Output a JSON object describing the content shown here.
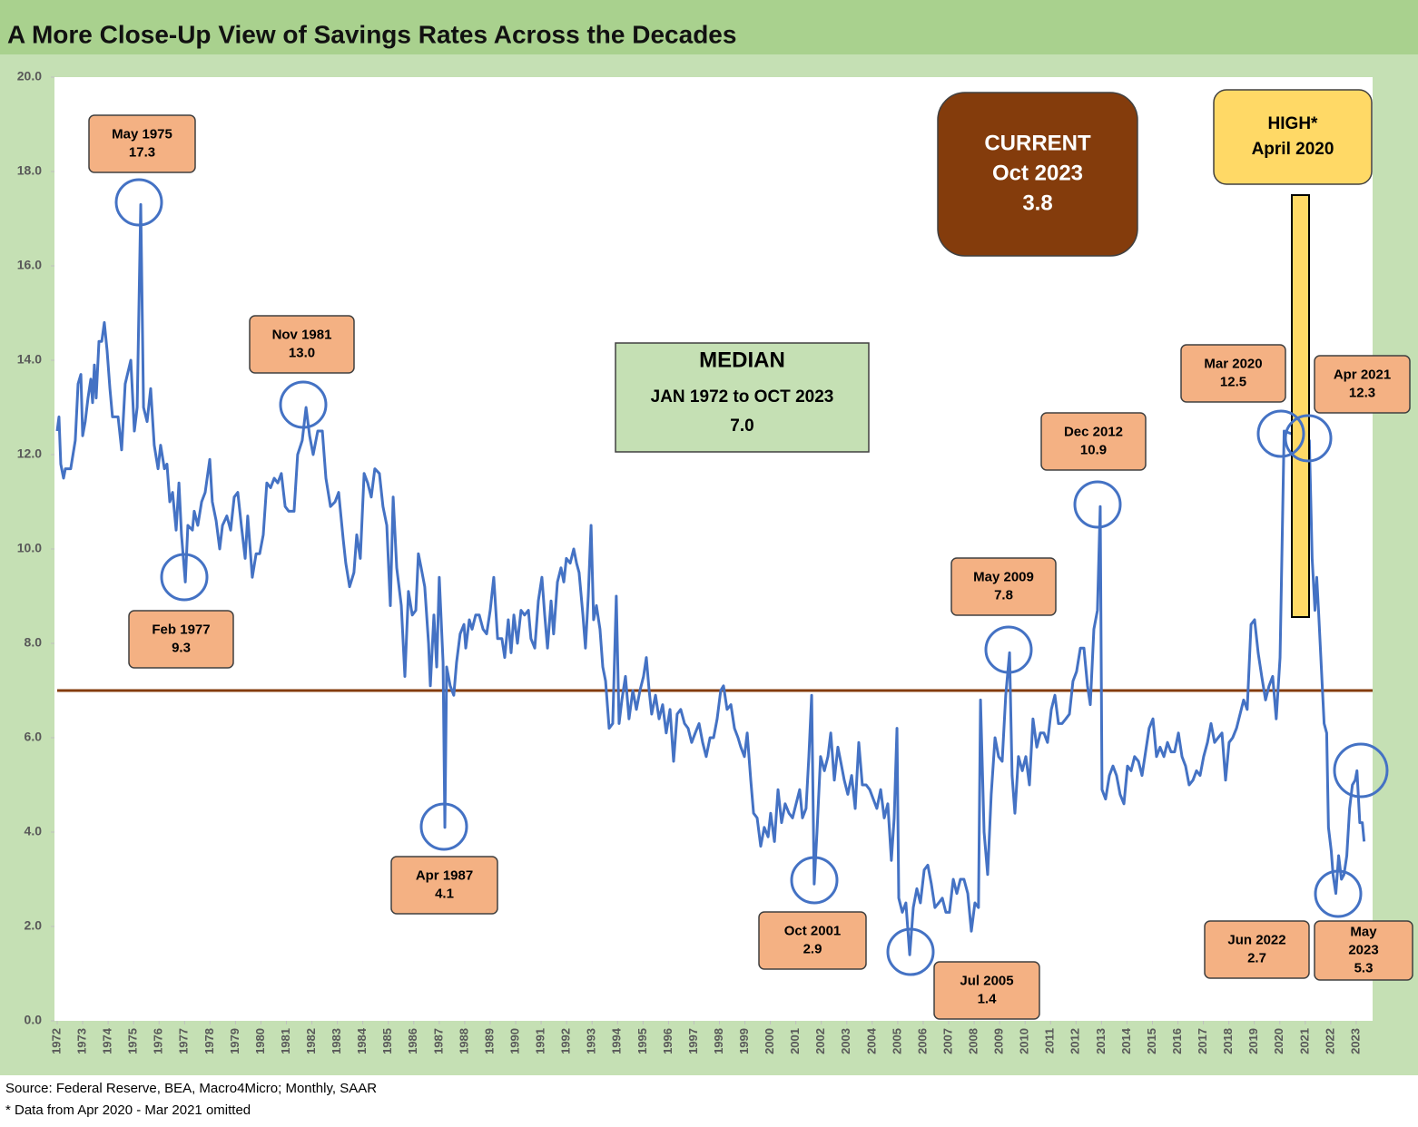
{
  "chart_data": {
    "type": "line",
    "title": "A More Close-Up View of Savings Rates Across the Decades",
    "source": "Source: Federal Reserve, BEA, Macro4Micro; Monthly, SAAR",
    "note": "* Data from Apr 2020 - Mar 2021 omitted",
    "xlim": [
      1972,
      2024
    ],
    "ylim": [
      0,
      20
    ],
    "grid": false,
    "xticks": [
      1972,
      1973,
      1974,
      1975,
      1976,
      1977,
      1978,
      1979,
      1980,
      1981,
      1982,
      1983,
      1984,
      1985,
      1986,
      1987,
      1988,
      1989,
      1990,
      1991,
      1992,
      1993,
      1994,
      1995,
      1996,
      1997,
      1998,
      1999,
      2000,
      2001,
      2002,
      2003,
      2004,
      2005,
      2006,
      2007,
      2008,
      2009,
      2010,
      2011,
      2012,
      2013,
      2014,
      2015,
      2016,
      2017,
      2018,
      2019,
      2020,
      2021,
      2022,
      2023
    ],
    "yticks": [
      {
        "value": 0,
        "label": "0.0"
      },
      {
        "value": 2,
        "label": "2.0"
      },
      {
        "value": 4,
        "label": "4.0"
      },
      {
        "value": 6,
        "label": "6.0"
      },
      {
        "value": 8,
        "label": "8.0"
      },
      {
        "value": 10,
        "label": "10.0"
      },
      {
        "value": 12,
        "label": "12.0"
      },
      {
        "value": 14,
        "label": "14.0"
      },
      {
        "value": 16,
        "label": "16.0"
      },
      {
        "value": 18,
        "label": "18.0"
      },
      {
        "value": 20,
        "label": "20.0"
      }
    ],
    "median": {
      "value": 7,
      "label": "7.0",
      "color": "#843c0c"
    },
    "median_box": [
      "MEDIAN",
      "JAN 1972 to OCT 2023"
    ],
    "current_box": [
      "CURRENT",
      "Oct 2023",
      "3.8"
    ],
    "high_box": [
      "HIGH*",
      "April 2020"
    ],
    "annotations": [
      [
        "May 1975",
        "17.3"
      ],
      [
        "Feb 1977",
        "9.3"
      ],
      [
        "Nov 1981",
        "13.0"
      ],
      [
        "Apr 1987",
        "4.1"
      ],
      [
        "Oct 2001",
        "2.9"
      ],
      [
        "Jul 2005",
        "1.4"
      ],
      [
        "May 2009",
        "7.8"
      ],
      [
        "Dec 2012",
        "10.9"
      ],
      [
        "Mar 2020",
        "12.5"
      ],
      [
        "Apr 2021",
        "12.3"
      ],
      [
        "Jun 2022",
        "2.7"
      ],
      [
        "May",
        "2023",
        "5.3"
      ]
    ],
    "series": [
      {
        "color": "#4472c4",
        "x": [
          1972.0,
          1972.07,
          1972.14,
          1972.25,
          1972.32,
          1972.53,
          1972.71,
          1972.82,
          1972.93,
          1973.0,
          1973.1,
          1973.21,
          1973.32,
          1973.39,
          1973.46,
          1973.53,
          1973.64,
          1973.75,
          1973.85,
          1973.96,
          1974.07,
          1974.17,
          1974.39,
          1974.53,
          1974.67,
          1974.89,
          1975.03,
          1975.14,
          1975.28,
          1975.39,
          1975.53,
          1975.67,
          1975.81,
          1975.96,
          1976.06,
          1976.21,
          1976.31,
          1976.42,
          1976.53,
          1976.67,
          1976.78,
          1976.88,
          1977.03,
          1977.13,
          1977.31,
          1977.38,
          1977.52,
          1977.67,
          1977.81,
          1977.99,
          1978.09,
          1978.24,
          1978.38,
          1978.49,
          1978.66,
          1978.81,
          1978.95,
          1979.09,
          1979.23,
          1979.38,
          1979.48,
          1979.66,
          1979.81,
          1979.95,
          1980.09,
          1980.23,
          1980.38,
          1980.52,
          1980.66,
          1980.8,
          1980.95,
          1981.09,
          1981.3,
          1981.44,
          1981.62,
          1981.77,
          1981.91,
          1982.05,
          1982.23,
          1982.41,
          1982.55,
          1982.73,
          1982.91,
          1983.05,
          1983.23,
          1983.33,
          1983.48,
          1983.65,
          1983.76,
          1983.9,
          1984.05,
          1984.19,
          1984.33,
          1984.47,
          1984.65,
          1984.79,
          1984.94,
          1985.08,
          1985.19,
          1985.33,
          1985.51,
          1985.65,
          1985.79,
          1985.94,
          1986.08,
          1986.18,
          1986.29,
          1986.43,
          1986.58,
          1986.65,
          1986.79,
          1986.9,
          1987.0,
          1987.15,
          1987.22,
          1987.29,
          1987.43,
          1987.57,
          1987.68,
          1987.82,
          1987.97,
          1988.04,
          1988.18,
          1988.29,
          1988.43,
          1988.57,
          1988.72,
          1988.86,
          1989.0,
          1989.14,
          1989.29,
          1989.46,
          1989.57,
          1989.71,
          1989.82,
          1989.93,
          1990.07,
          1990.21,
          1990.35,
          1990.5,
          1990.6,
          1990.75,
          1990.89,
          1991.03,
          1991.14,
          1991.25,
          1991.39,
          1991.49,
          1991.64,
          1991.78,
          1991.89,
          1991.99,
          1992.14,
          1992.28,
          1992.39,
          1992.49,
          1992.64,
          1992.74,
          1992.85,
          1992.96,
          1993.06,
          1993.17,
          1993.31,
          1993.42,
          1993.53,
          1993.67,
          1993.81,
          1993.95,
          1994.06,
          1994.17,
          1994.31,
          1994.45,
          1994.6,
          1994.74,
          1994.88,
          1995.02,
          1995.13,
          1995.24,
          1995.34,
          1995.49,
          1995.63,
          1995.77,
          1995.91,
          1996.06,
          1996.2,
          1996.34,
          1996.48,
          1996.63,
          1996.77,
          1996.91,
          1997.05,
          1997.2,
          1997.34,
          1997.48,
          1997.63,
          1997.77,
          1997.91,
          1998.05,
          1998.16,
          1998.3,
          1998.45,
          1998.59,
          1998.73,
          1998.84,
          1998.98,
          1999.09,
          1999.23,
          1999.34,
          1999.48,
          1999.62,
          1999.76,
          1999.91,
          2000.01,
          2000.16,
          2000.3,
          2000.44,
          2000.58,
          2000.73,
          2000.87,
          2001.01,
          2001.15,
          2001.26,
          2001.4,
          2001.51,
          2001.62,
          2001.72,
          2001.83,
          2001.97,
          2002.12,
          2002.26,
          2002.37,
          2002.51,
          2002.65,
          2002.76,
          2002.9,
          2003.04,
          2003.19,
          2003.33,
          2003.47,
          2003.61,
          2003.76,
          2003.9,
          2004.04,
          2004.18,
          2004.33,
          2004.47,
          2004.61,
          2004.75,
          2004.86,
          2004.97,
          2005.04,
          2005.18,
          2005.32,
          2005.47,
          2005.61,
          2005.75,
          2005.89,
          2006.04,
          2006.18,
          2006.32,
          2006.46,
          2006.61,
          2006.75,
          2006.89,
          2007.03,
          2007.18,
          2007.32,
          2007.46,
          2007.6,
          2007.75,
          2007.89,
          2008.03,
          2008.17,
          2008.25,
          2008.39,
          2008.53,
          2008.67,
          2008.82,
          2008.96,
          2009.1,
          2009.24,
          2009.39,
          2009.49,
          2009.6,
          2009.74,
          2009.89,
          2010.03,
          2010.17,
          2010.31,
          2010.46,
          2010.6,
          2010.74,
          2010.88,
          2011.03,
          2011.17,
          2011.31,
          2011.45,
          2011.6,
          2011.74,
          2011.88,
          2012.02,
          2012.17,
          2012.31,
          2012.45,
          2012.56,
          2012.7,
          2012.84,
          2012.95,
          2013.02,
          2013.16,
          2013.31,
          2013.45,
          2013.59,
          2013.73,
          2013.88,
          2014.02,
          2014.16,
          2014.3,
          2014.45,
          2014.59,
          2014.73,
          2014.87,
          2015.02,
          2015.16,
          2015.3,
          2015.45,
          2015.59,
          2015.73,
          2015.87,
          2016.02,
          2016.16,
          2016.3,
          2016.44,
          2016.59,
          2016.73,
          2016.87,
          2017.01,
          2017.16,
          2017.3,
          2017.44,
          2017.58,
          2017.73,
          2017.87,
          2018.01,
          2018.15,
          2018.3,
          2018.44,
          2018.58,
          2018.72,
          2018.87,
          2019.01,
          2019.15,
          2019.29,
          2019.44,
          2019.58,
          2019.72,
          2019.86,
          2020.01,
          2020.17,
          2021.16,
          2021.27,
          2021.38,
          2021.45,
          2021.52,
          2021.63,
          2021.74,
          2021.84,
          2021.91,
          2022.02,
          2022.09,
          2022.2,
          2022.31,
          2022.42,
          2022.52,
          2022.63,
          2022.74,
          2022.85,
          2022.96,
          2023.03,
          2023.14,
          2023.24,
          2023.31
        ],
        "values": [
          12.5,
          12.8,
          11.8,
          11.5,
          11.7,
          11.7,
          12.3,
          13.5,
          13.7,
          12.4,
          12.7,
          13.2,
          13.6,
          13.1,
          13.9,
          13.2,
          14.4,
          14.4,
          14.8,
          14.2,
          13.4,
          12.8,
          12.8,
          12.1,
          13.5,
          14.0,
          12.5,
          13.0,
          17.3,
          13.0,
          12.7,
          13.4,
          12.2,
          11.7,
          12.2,
          11.7,
          11.8,
          11.0,
          11.2,
          10.4,
          11.4,
          10.3,
          9.3,
          10.5,
          10.4,
          10.8,
          10.5,
          11.0,
          11.2,
          11.9,
          11.0,
          10.6,
          10.0,
          10.5,
          10.7,
          10.4,
          11.1,
          11.2,
          10.5,
          9.8,
          10.7,
          9.4,
          9.9,
          9.9,
          10.3,
          11.4,
          11.3,
          11.5,
          11.4,
          11.6,
          10.9,
          10.8,
          10.8,
          12.0,
          12.3,
          13.0,
          12.4,
          12.0,
          12.5,
          12.5,
          11.5,
          10.9,
          11.0,
          11.2,
          10.2,
          9.7,
          9.2,
          9.5,
          10.3,
          9.8,
          11.6,
          11.4,
          11.1,
          11.7,
          11.6,
          10.9,
          10.5,
          8.8,
          11.1,
          9.6,
          8.8,
          7.3,
          9.1,
          8.6,
          8.7,
          9.9,
          9.6,
          9.2,
          8.0,
          7.1,
          8.6,
          7.5,
          9.4,
          7.6,
          4.1,
          7.5,
          7.1,
          6.9,
          7.6,
          8.2,
          8.4,
          7.9,
          8.5,
          8.3,
          8.6,
          8.6,
          8.3,
          8.2,
          8.7,
          9.4,
          8.1,
          8.1,
          7.7,
          8.5,
          7.8,
          8.6,
          8.0,
          8.7,
          8.6,
          8.7,
          8.1,
          7.9,
          8.9,
          9.4,
          8.6,
          7.9,
          8.9,
          8.2,
          9.3,
          9.6,
          9.3,
          9.8,
          9.7,
          10.0,
          9.7,
          9.5,
          8.6,
          7.9,
          9.0,
          10.5,
          8.5,
          8.8,
          8.3,
          7.5,
          7.2,
          6.2,
          6.3,
          9.0,
          6.3,
          6.8,
          7.3,
          6.4,
          7.0,
          6.6,
          7.0,
          7.3,
          7.7,
          7.0,
          6.5,
          6.9,
          6.4,
          6.7,
          6.1,
          6.6,
          5.5,
          6.5,
          6.6,
          6.3,
          6.2,
          5.9,
          6.1,
          6.3,
          5.9,
          5.6,
          6.0,
          6.0,
          6.4,
          7.0,
          7.1,
          6.6,
          6.7,
          6.2,
          6.0,
          5.8,
          5.6,
          6.1,
          5.1,
          4.4,
          4.3,
          3.7,
          4.1,
          3.9,
          4.4,
          3.8,
          4.9,
          4.2,
          4.6,
          4.4,
          4.3,
          4.6,
          4.9,
          4.3,
          4.5,
          5.6,
          6.9,
          2.9,
          4.0,
          5.6,
          5.3,
          5.6,
          6.1,
          5.1,
          5.8,
          5.5,
          5.1,
          4.8,
          5.2,
          4.5,
          5.9,
          5.0,
          5.0,
          4.9,
          4.7,
          4.5,
          4.9,
          4.3,
          4.6,
          3.4,
          4.3,
          6.2,
          2.6,
          2.3,
          2.5,
          1.4,
          2.4,
          2.8,
          2.5,
          3.2,
          3.3,
          2.9,
          2.4,
          2.5,
          2.6,
          2.3,
          2.3,
          3.0,
          2.7,
          3.0,
          3.0,
          2.7,
          1.9,
          2.5,
          2.4,
          6.8,
          4.0,
          3.1,
          4.8,
          6.0,
          5.6,
          5.5,
          6.9,
          7.8,
          5.2,
          4.4,
          5.6,
          5.3,
          5.6,
          5.0,
          6.4,
          5.8,
          6.1,
          6.1,
          5.9,
          6.6,
          6.9,
          6.3,
          6.3,
          6.4,
          6.5,
          7.2,
          7.4,
          7.9,
          7.9,
          7.1,
          6.7,
          8.3,
          8.7,
          10.9,
          4.9,
          4.7,
          5.2,
          5.4,
          5.2,
          4.8,
          4.6,
          5.4,
          5.3,
          5.6,
          5.5,
          5.2,
          5.7,
          6.2,
          6.4,
          5.6,
          5.8,
          5.6,
          5.9,
          5.7,
          5.7,
          6.1,
          5.6,
          5.4,
          5.0,
          5.1,
          5.3,
          5.2,
          5.6,
          5.9,
          6.3,
          5.9,
          6.0,
          6.1,
          5.1,
          5.9,
          6.0,
          6.2,
          6.5,
          6.8,
          6.6,
          8.4,
          8.5,
          7.8,
          7.3,
          6.8,
          7.1,
          7.3,
          6.4,
          7.7,
          12.5,
          12.3,
          9.8,
          8.7,
          9.4,
          8.7,
          7.5,
          6.3,
          6.1,
          4.1,
          3.6,
          3.1,
          2.7,
          3.5,
          3.0,
          3.1,
          3.5,
          4.5,
          5.0,
          5.1,
          5.3,
          4.2,
          4.2,
          3.8
        ]
      }
    ]
  }
}
